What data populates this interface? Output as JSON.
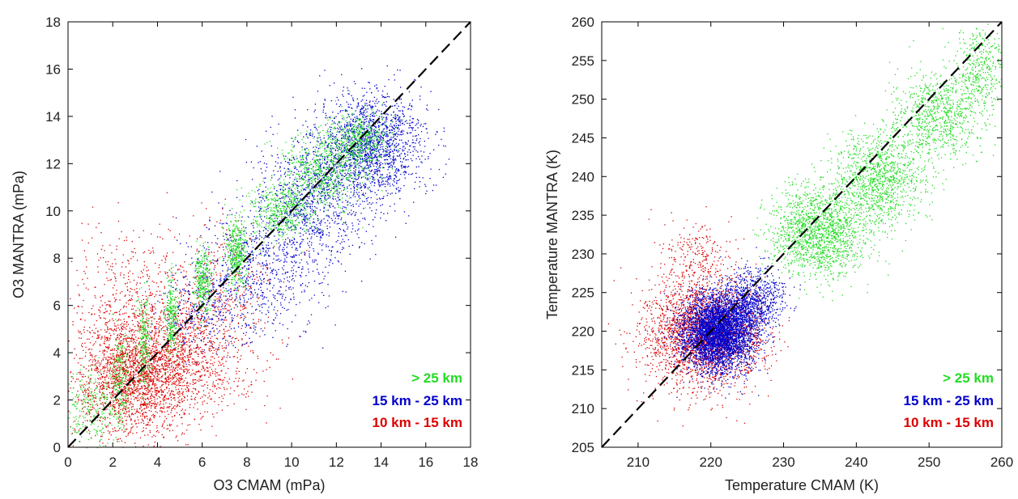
{
  "chart_data": [
    {
      "type": "scatter",
      "xlabel": "O3 CMAM (mPa)",
      "ylabel": "O3 MANTRA (mPa)",
      "xlim": [
        0,
        18
      ],
      "ylim": [
        0,
        18
      ],
      "xticks": [
        "0",
        "2",
        "4",
        "6",
        "8",
        "10",
        "12",
        "14",
        "16",
        "18"
      ],
      "yticks": [
        "0",
        "2",
        "4",
        "6",
        "8",
        "10",
        "12",
        "14",
        "16",
        "18"
      ],
      "reference_line": {
        "style": "dashed",
        "color": "#000000",
        "from": [
          0,
          0
        ],
        "to": [
          18,
          18
        ]
      },
      "legend_placement": "bottom-right",
      "series": [
        {
          "name": "> 25 km",
          "color": "#22dd22",
          "clusters": [
            {
              "cx": 1.0,
              "cy": 1.5,
              "sx": 0.6,
              "sy": 0.9,
              "count": 260
            },
            {
              "cx": 2.3,
              "cy": 3.0,
              "sx": 0.2,
              "sy": 1.0,
              "count": 220
            },
            {
              "cx": 3.4,
              "cy": 4.5,
              "sx": 0.15,
              "sy": 0.9,
              "count": 220
            },
            {
              "cx": 4.6,
              "cy": 5.5,
              "sx": 0.15,
              "sy": 0.8,
              "count": 260
            },
            {
              "cx": 6.0,
              "cy": 7.0,
              "sx": 0.2,
              "sy": 0.7,
              "count": 300
            },
            {
              "cx": 7.5,
              "cy": 8.3,
              "sx": 0.25,
              "sy": 0.7,
              "count": 380
            },
            {
              "cx": 9.5,
              "cy": 10.0,
              "sx": 0.7,
              "sy": 0.6,
              "count": 450
            },
            {
              "cx": 11.5,
              "cy": 11.8,
              "sx": 1.0,
              "sy": 0.8,
              "count": 650
            },
            {
              "cx": 13.0,
              "cy": 13.0,
              "sx": 0.7,
              "sy": 0.6,
              "count": 450
            }
          ]
        },
        {
          "name": "15 km - 25 km",
          "color": "#0000cc",
          "clusters": [
            {
              "cx": 13.5,
              "cy": 12.8,
              "sx": 1.2,
              "sy": 1.1,
              "count": 1700
            },
            {
              "cx": 11.0,
              "cy": 10.5,
              "sx": 1.3,
              "sy": 1.3,
              "count": 1000
            },
            {
              "cx": 8.5,
              "cy": 7.5,
              "sx": 1.4,
              "sy": 1.3,
              "count": 700
            },
            {
              "cx": 6.0,
              "cy": 5.8,
              "sx": 1.0,
              "sy": 1.0,
              "count": 300
            }
          ]
        },
        {
          "name": "10 km - 15 km",
          "color": "#dd0000",
          "clusters": [
            {
              "cx": 3.0,
              "cy": 3.0,
              "sx": 1.4,
              "sy": 1.2,
              "count": 2300
            },
            {
              "cx": 5.5,
              "cy": 4.2,
              "sx": 1.5,
              "sy": 1.3,
              "count": 900
            },
            {
              "cx": 2.5,
              "cy": 6.5,
              "sx": 1.2,
              "sy": 1.4,
              "count": 350
            },
            {
              "cx": 6.5,
              "cy": 7.0,
              "sx": 1.3,
              "sy": 1.4,
              "count": 300
            }
          ]
        }
      ]
    },
    {
      "type": "scatter",
      "xlabel": "Temperature CMAM (K)",
      "ylabel": "Temperature MANTRA (K)",
      "xlim": [
        205,
        260
      ],
      "ylim": [
        205,
        260
      ],
      "xticks": [
        "210",
        "220",
        "230",
        "240",
        "250",
        "260"
      ],
      "yticks": [
        "205",
        "210",
        "215",
        "220",
        "225",
        "230",
        "235",
        "240",
        "245",
        "250",
        "255",
        "260"
      ],
      "reference_line": {
        "style": "dashed",
        "color": "#000000",
        "from": [
          205,
          205
        ],
        "to": [
          260,
          260
        ]
      },
      "legend_placement": "bottom-right",
      "series": [
        {
          "name": "> 25 km",
          "color": "#22dd22",
          "clusters": [
            {
              "cx": 235,
              "cy": 233,
              "sx": 3.5,
              "sy": 3.0,
              "count": 1600
            },
            {
              "cx": 243,
              "cy": 240,
              "sx": 3.0,
              "sy": 3.0,
              "count": 1100
            },
            {
              "cx": 251,
              "cy": 248,
              "sx": 3.0,
              "sy": 3.0,
              "count": 800
            },
            {
              "cx": 257,
              "cy": 254,
              "sx": 2.0,
              "sy": 3.0,
              "count": 400
            }
          ]
        },
        {
          "name": "15 km - 25 km",
          "color": "#0000cc",
          "clusters": [
            {
              "cx": 221,
              "cy": 220,
              "sx": 2.5,
              "sy": 2.5,
              "count": 4200
            },
            {
              "cx": 226,
              "cy": 224,
              "sx": 2.0,
              "sy": 2.0,
              "count": 800
            }
          ]
        },
        {
          "name": "10 km - 15 km",
          "color": "#dd0000",
          "clusters": [
            {
              "cx": 219,
              "cy": 220,
              "sx": 4.0,
              "sy": 3.5,
              "count": 2700
            },
            {
              "cx": 218,
              "cy": 230,
              "sx": 2.5,
              "sy": 2.0,
              "count": 200
            }
          ]
        }
      ]
    }
  ]
}
